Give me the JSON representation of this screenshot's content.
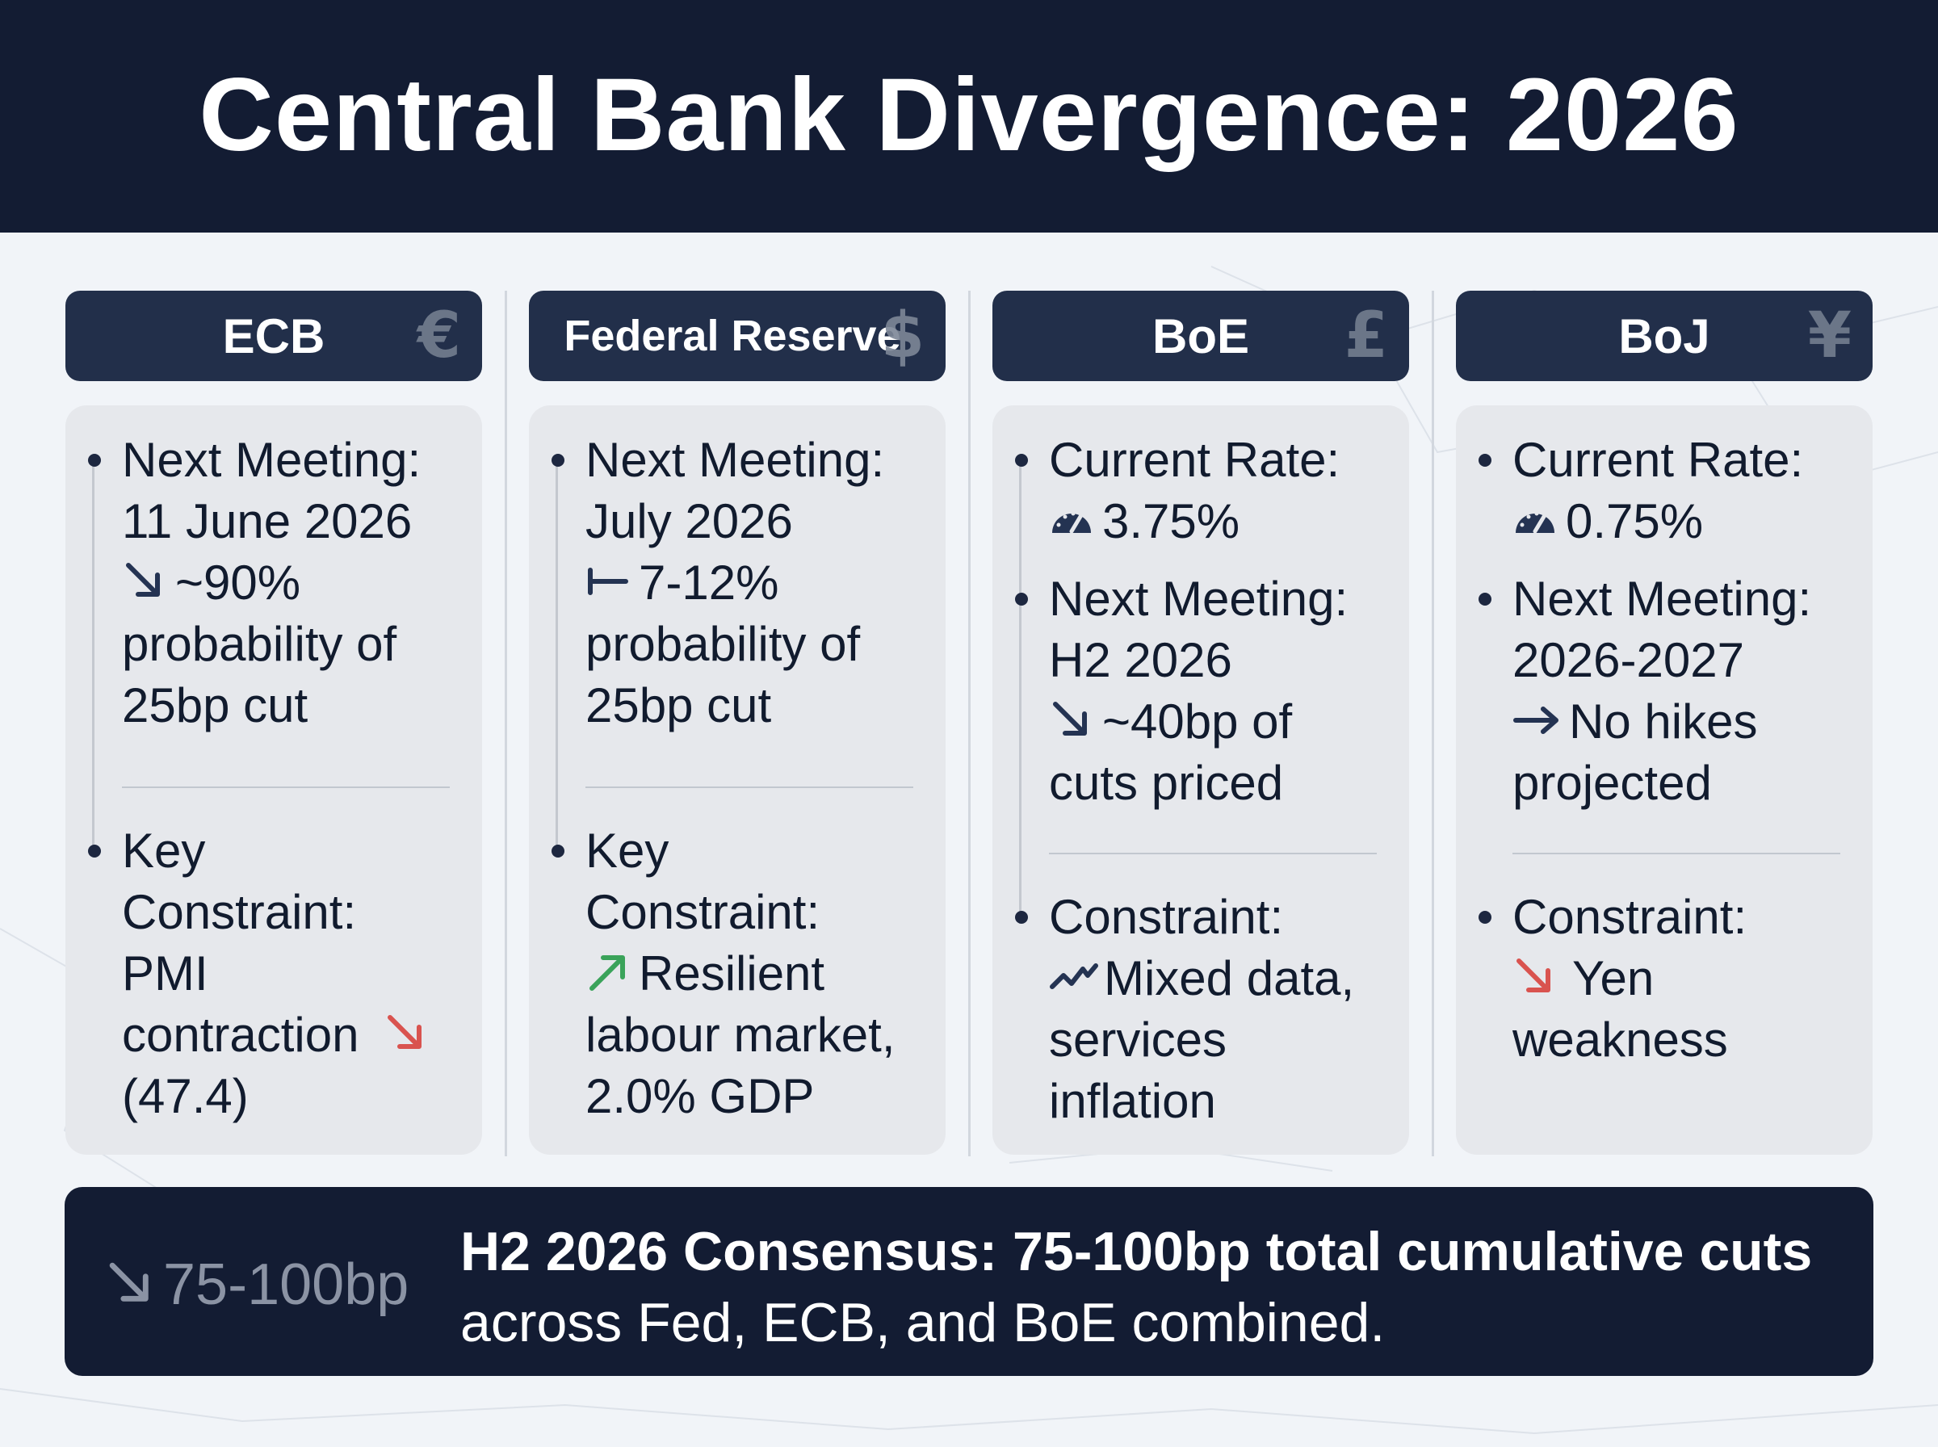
{
  "title": "Central Bank Divergence: 2026",
  "colors": {
    "header_bg": "#131c33",
    "column_head_bg": "#222f4a",
    "card_bg": "#e6e8ec",
    "down_red": "#d9534f",
    "up_green": "#3aa35a",
    "footer_bg": "#131c33"
  },
  "banks": [
    {
      "name": "ECB",
      "symbol": "€",
      "block1": {
        "lines": [
          "Next Meeting:",
          "11 June 2026",
          "~90%",
          "probability of",
          "25bp cut"
        ],
        "icon": "arrow-down-right-icon"
      },
      "block2": {
        "lines": [
          "Key",
          "Constraint:",
          "PMI",
          "contraction",
          "(47.4)"
        ],
        "icon": "arrow-down-right-red-icon"
      }
    },
    {
      "name": "Federal Reserve",
      "symbol": "$",
      "block1": {
        "lines": [
          "Next Meeting:",
          "July 2026",
          "7-12%",
          "probability of",
          "25bp cut"
        ],
        "icon": "hold-steady-icon"
      },
      "block2": {
        "lines": [
          "Key",
          "Constraint:",
          "Resilient",
          "labour market,",
          "2.0% GDP"
        ],
        "icon": "arrow-up-right-green-icon"
      }
    },
    {
      "name": "BoE",
      "symbol": "£",
      "block1": {
        "lines": [
          "Current Rate:",
          "3.75%",
          "Next Meeting:",
          "H2 2026",
          "~40bp of",
          "cuts priced"
        ],
        "icons": [
          "gauge-icon",
          "arrow-down-right-icon"
        ]
      },
      "block2": {
        "lines": [
          "Constraint:",
          "Mixed data,",
          "services",
          "inflation"
        ],
        "icon": "trend-zigzag-icon"
      }
    },
    {
      "name": "BoJ",
      "symbol": "¥",
      "block1": {
        "lines": [
          "Current Rate:",
          "0.75%",
          "Next Meeting:",
          "2026-2027",
          "No hikes",
          "projected"
        ],
        "icons": [
          "gauge-icon",
          "arrow-right-icon"
        ]
      },
      "block2": {
        "lines": [
          "Constraint:",
          "Yen",
          "weakness"
        ],
        "icon": "arrow-down-right-red-icon"
      }
    }
  ],
  "footer": {
    "headline_value": "75-100bp",
    "consensus_bold": "H2 2026 Consensus: 75-100bp total cumulative cuts",
    "consensus_rest": " across Fed, ECB, and BoE combined."
  }
}
